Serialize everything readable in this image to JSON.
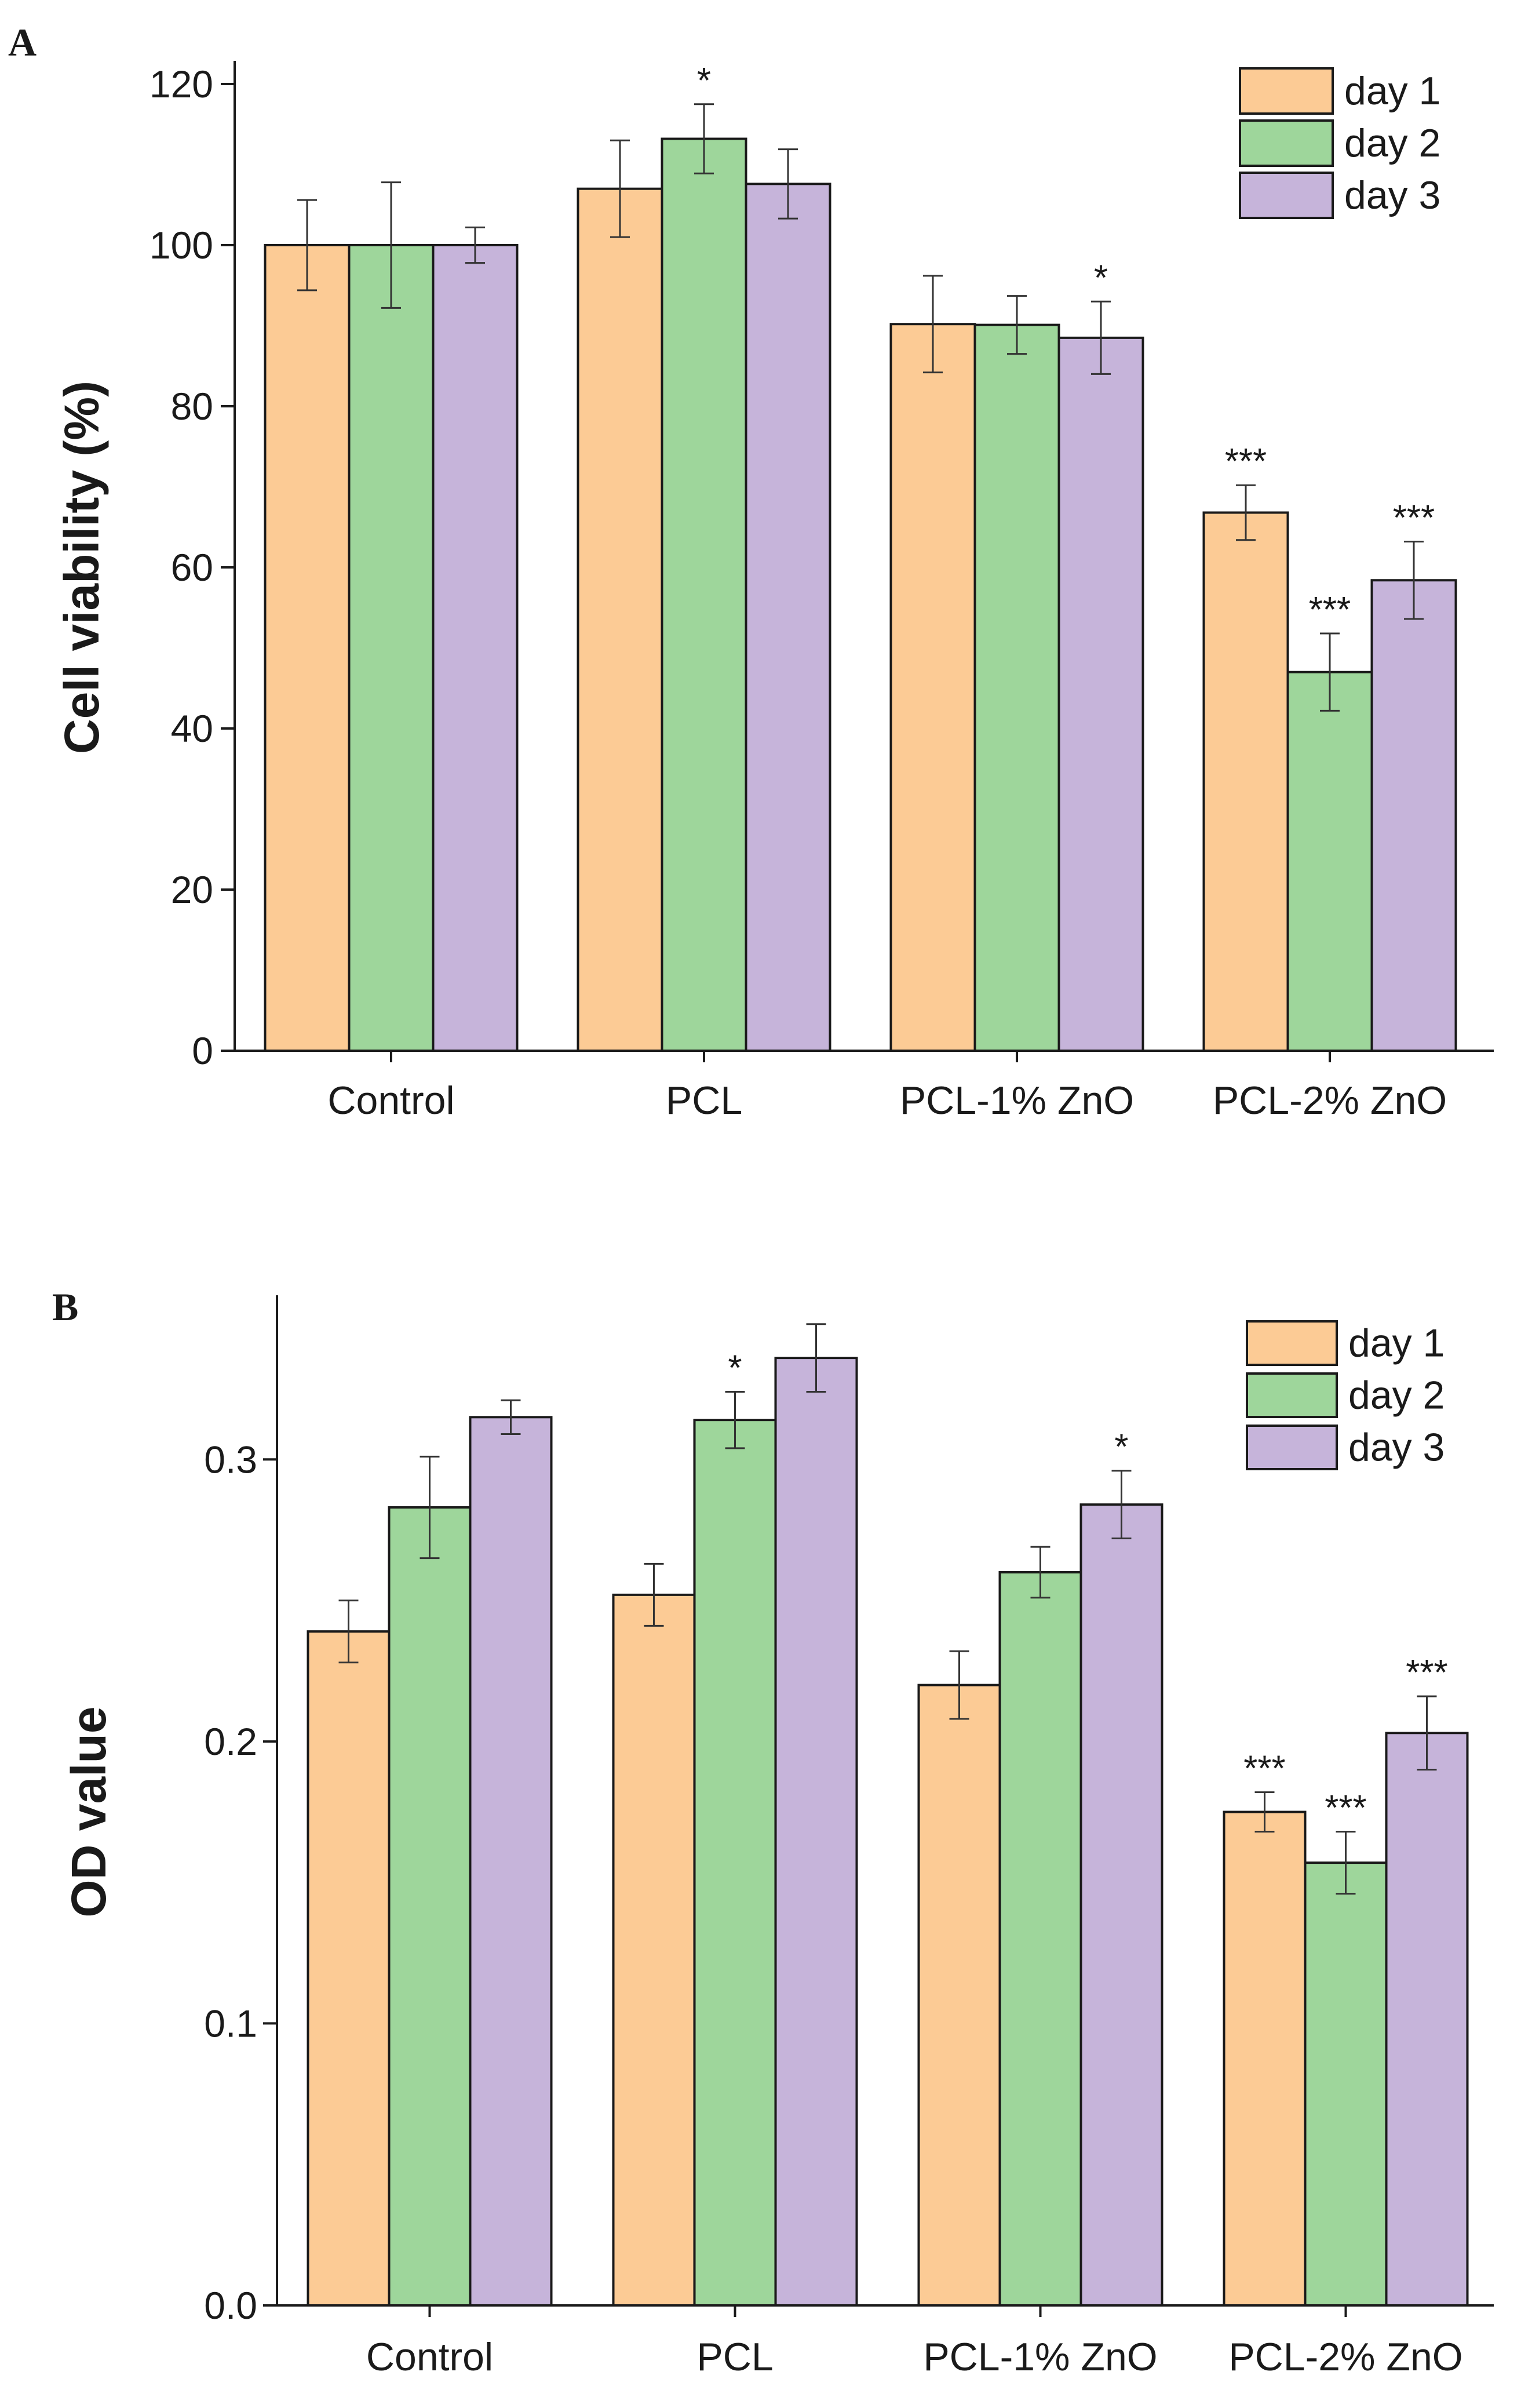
{
  "figure": {
    "legend_entries": [
      "day 1",
      "day 2",
      "day 3"
    ],
    "series_colors": [
      "#FCCB95",
      "#9ED69B",
      "#C6B4DA"
    ]
  },
  "chart_data": [
    {
      "type": "bar",
      "panel": "A",
      "title": "",
      "xlabel": "",
      "ylabel": "Cell viability (%)",
      "ylim": [
        0,
        120
      ],
      "yticks": [
        0,
        20,
        40,
        60,
        80,
        100,
        120
      ],
      "ytick_labels": [
        "0",
        "20",
        "40",
        "60",
        "80",
        "100",
        "120"
      ],
      "categories": [
        "Control",
        "PCL",
        "PCL-1% ZnO",
        "PCL-2% ZnO"
      ],
      "legend_position": "top-right",
      "series": [
        {
          "name": "day 1",
          "values": [
            100,
            107,
            90.2,
            66.8
          ],
          "errors": [
            5.6,
            6.0,
            6.0,
            3.4
          ],
          "significance": [
            "",
            "",
            "",
            "***"
          ]
        },
        {
          "name": "day 2",
          "values": [
            100,
            113.2,
            90.1,
            47
          ],
          "errors": [
            7.8,
            4.3,
            3.6,
            4.8
          ],
          "significance": [
            "",
            "*",
            "",
            "***"
          ]
        },
        {
          "name": "day 3",
          "values": [
            100,
            107.6,
            88.5,
            58.4
          ],
          "errors": [
            2.2,
            4.3,
            4.5,
            4.8
          ],
          "significance": [
            "",
            "",
            "*",
            "***"
          ]
        }
      ]
    },
    {
      "type": "bar",
      "panel": "B",
      "title": "",
      "xlabel": "",
      "ylabel": "OD value",
      "ylim": [
        0,
        0.35
      ],
      "yticks": [
        0,
        0.1,
        0.2,
        0.3
      ],
      "ytick_labels": [
        "0.0",
        "0.1",
        "0.2",
        "0.3"
      ],
      "categories": [
        "Control",
        "PCL",
        "PCL-1% ZnO",
        "PCL-2% ZnO"
      ],
      "legend_position": "top-right",
      "series": [
        {
          "name": "day 1",
          "values": [
            0.239,
            0.252,
            0.22,
            0.175
          ],
          "errors": [
            0.011,
            0.011,
            0.012,
            0.007
          ],
          "significance": [
            "",
            "",
            "",
            "***"
          ]
        },
        {
          "name": "day 2",
          "values": [
            0.283,
            0.314,
            0.26,
            0.157
          ],
          "errors": [
            0.018,
            0.01,
            0.009,
            0.011
          ],
          "significance": [
            "",
            "*",
            "",
            "***"
          ]
        },
        {
          "name": "day 3",
          "values": [
            0.315,
            0.336,
            0.284,
            0.203
          ],
          "errors": [
            0.006,
            0.012,
            0.012,
            0.013
          ],
          "significance": [
            "",
            "",
            "*",
            "***"
          ]
        }
      ]
    }
  ]
}
